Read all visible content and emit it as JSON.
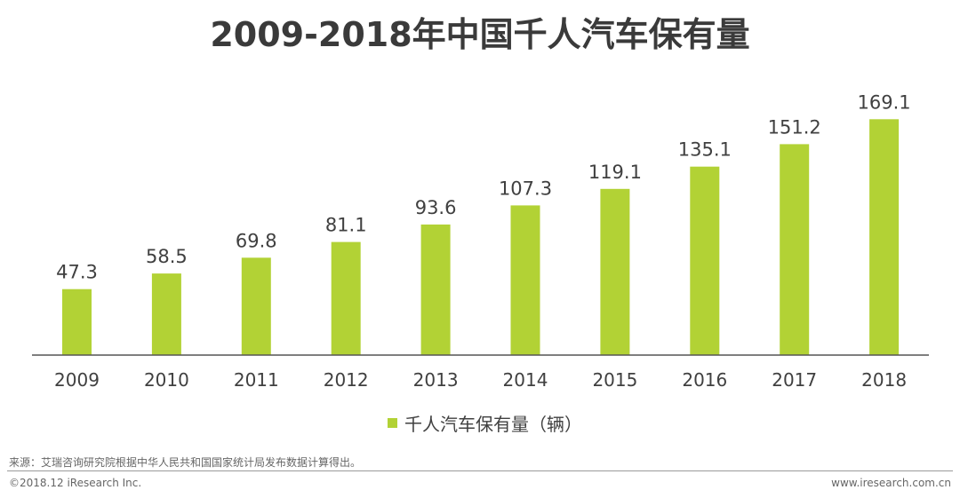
{
  "title": "2009-2018年中国千人汽车保有量",
  "colors": {
    "bar": "#b2d235",
    "axis": "#555555",
    "text": "#404040"
  },
  "chart_data": {
    "type": "bar",
    "categories": [
      "2009",
      "2010",
      "2011",
      "2012",
      "2013",
      "2014",
      "2015",
      "2016",
      "2017",
      "2018"
    ],
    "series": [
      {
        "name": "千人汽车保有量（辆）",
        "values": [
          47.3,
          58.5,
          69.8,
          81.1,
          93.6,
          107.3,
          119.1,
          135.1,
          151.2,
          169.1
        ]
      }
    ],
    "data_labels": [
      "47.3",
      "58.5",
      "69.8",
      "81.1",
      "93.6",
      "107.3",
      "119.1",
      "135.1",
      "151.2",
      "169.1"
    ],
    "ylim": [
      0,
      175
    ],
    "grid": false,
    "legend_position": "bottom-center"
  },
  "legend": {
    "label": "千人汽车保有量（辆）"
  },
  "footer": {
    "source": "来源：艾瑞咨询研究院根据中华人民共和国国家统计局发布数据计算得出。",
    "copyright": "©2018.12 iResearch Inc.",
    "website": "www.iresearch.com.cn"
  }
}
